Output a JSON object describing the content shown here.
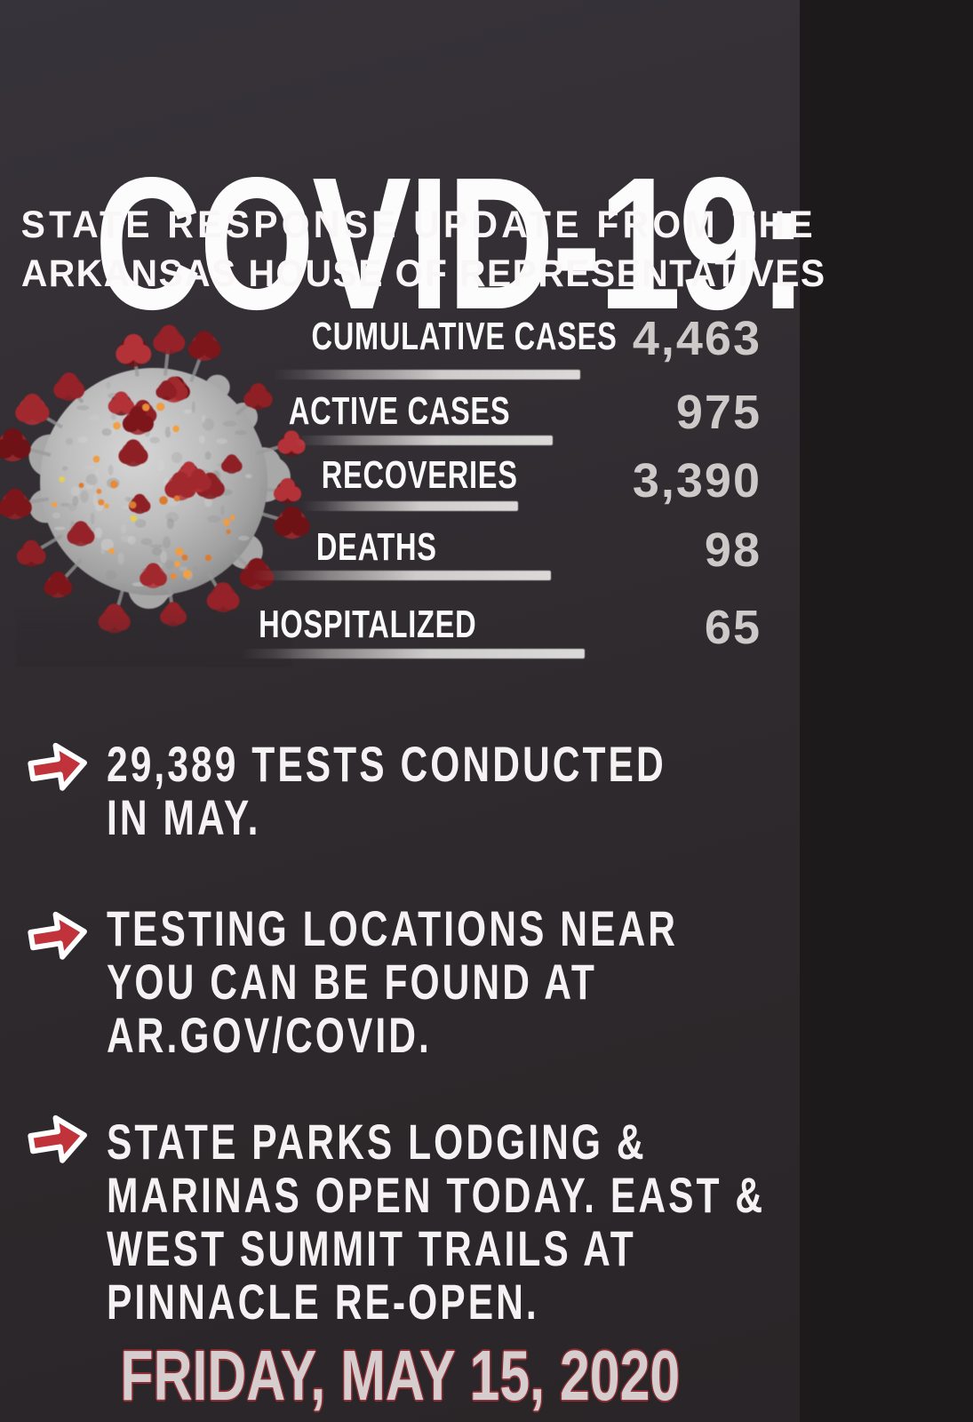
{
  "poster": {
    "title": "COVID-19:",
    "subtitle_line1": "STATE RESPONSE UPDATE FROM THE",
    "subtitle_line2": "ARKANSAS HOUSE OF REPRESENTATIVES",
    "date": "FRIDAY, MAY 15, 2020"
  },
  "stats": {
    "rows": [
      {
        "label": "CUMULATIVE CASES",
        "value": "4,463"
      },
      {
        "label": "ACTIVE CASES",
        "value": "975"
      },
      {
        "label": "RECOVERIES",
        "value": "3,390"
      },
      {
        "label": "DEATHS",
        "value": "98"
      },
      {
        "label": "HOSPITALIZED",
        "value": "65"
      }
    ]
  },
  "bullets": [
    {
      "lines": [
        "29,389 TESTS CONDUCTED",
        "IN MAY."
      ]
    },
    {
      "lines": [
        "TESTING LOCATIONS NEAR",
        "YOU CAN BE FOUND AT",
        "AR.GOV/COVID."
      ]
    },
    {
      "lines": [
        "STATE PARKS LODGING &",
        "MARINAS OPEN TODAY. EAST &",
        "WEST SUMMIT TRAILS AT",
        "PINNACLE RE-OPEN."
      ]
    }
  ],
  "icons": {
    "bullet": "red-arrow-right-icon",
    "virus": "coronavirus-3d-illustration"
  },
  "colors": {
    "background_top": "#37333a",
    "background_bottom": "#292528",
    "accent_red": "#c1333a",
    "arrow_outline": "#ffffff",
    "stat_number_gray": "#cdc9c9",
    "stat_bar_gray": "#cfcccc",
    "text_white": "#f8f6f6",
    "date_fill": "#d6cdce",
    "date_outline": "#8c2d33",
    "virus_body_gray": "#b5b5b5",
    "virus_spike_red": "#9b2328",
    "virus_dot_orange": "#e98a3a"
  }
}
